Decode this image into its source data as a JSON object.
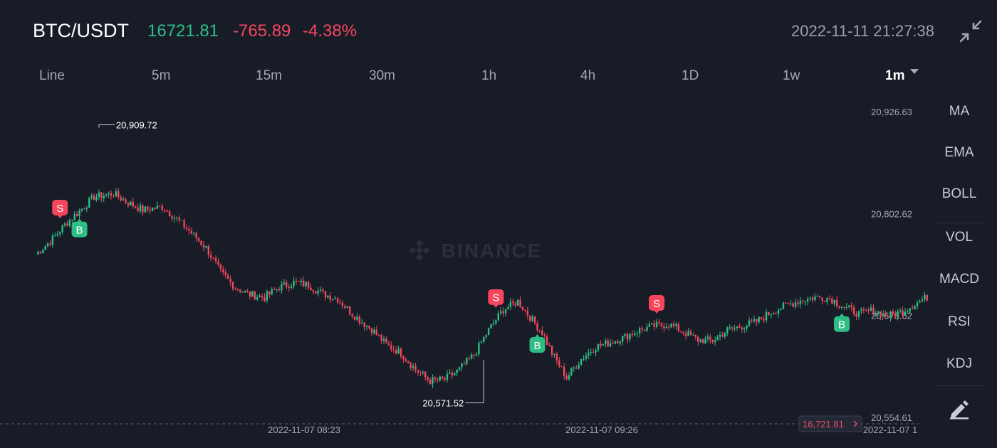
{
  "header": {
    "pair": "BTC/USDT",
    "last_price": "16721.81",
    "change": "-765.89",
    "change_pct": "-4.38%",
    "datetime": "2022-11-11 21:27:38"
  },
  "intervals": [
    {
      "label": "Line",
      "active": false
    },
    {
      "label": "5m",
      "active": false
    },
    {
      "label": "15m",
      "active": false
    },
    {
      "label": "30m",
      "active": false
    },
    {
      "label": "1h",
      "active": false
    },
    {
      "label": "4h",
      "active": false
    },
    {
      "label": "1D",
      "active": false
    },
    {
      "label": "1w",
      "active": false
    },
    {
      "label": "1m",
      "active": true
    }
  ],
  "indicators": [
    "MA",
    "EMA",
    "BOLL",
    "VOL",
    "MACD",
    "RSI",
    "KDJ"
  ],
  "watermark": "BINANCE",
  "icons": {
    "collapse": "collapse-icon",
    "dropdown": "caret-down-icon",
    "draw": "pencil-icon",
    "logo": "binance-logo-icon"
  },
  "colors": {
    "up": "#2ebd85",
    "down": "#f6465d",
    "background": "#181c27"
  },
  "chart_data": {
    "type": "candlestick",
    "y_ticks": [
      "20,926.63",
      "20,802.62",
      "20,678.62",
      "20,554.61"
    ],
    "y_tick_values": [
      20926.63,
      20802.62,
      20678.62,
      20554.61
    ],
    "x_ticks": [
      "2022-11-07 08:23",
      "2022-11-07 09:26",
      "2022-11-07 1"
    ],
    "high_label": "20,909.72",
    "low_label": "20,571.52",
    "last_price_tag": "16,721.81",
    "close_path": [
      [
        0,
        20752
      ],
      [
        6,
        20768
      ],
      [
        12,
        20788
      ],
      [
        18,
        20805
      ],
      [
        24,
        20822
      ],
      [
        32,
        20826
      ],
      [
        38,
        20815
      ],
      [
        44,
        20806
      ],
      [
        52,
        20810
      ],
      [
        58,
        20795
      ],
      [
        64,
        20778
      ],
      [
        70,
        20760
      ],
      [
        76,
        20730
      ],
      [
        82,
        20712
      ],
      [
        88,
        20703
      ],
      [
        94,
        20700
      ],
      [
        100,
        20712
      ],
      [
        106,
        20718
      ],
      [
        112,
        20715
      ],
      [
        118,
        20704
      ],
      [
        124,
        20698
      ],
      [
        130,
        20680
      ],
      [
        134,
        20670
      ],
      [
        138,
        20661
      ],
      [
        144,
        20642
      ],
      [
        150,
        20632
      ],
      [
        156,
        20612
      ],
      [
        162,
        20598
      ],
      [
        168,
        20600
      ],
      [
        174,
        20612
      ],
      [
        180,
        20630
      ],
      [
        186,
        20660
      ],
      [
        192,
        20685
      ],
      [
        198,
        20695
      ],
      [
        204,
        20672
      ],
      [
        208,
        20657
      ],
      [
        212,
        20632
      ],
      [
        218,
        20602
      ],
      [
        224,
        20625
      ],
      [
        230,
        20640
      ],
      [
        236,
        20645
      ],
      [
        242,
        20652
      ],
      [
        248,
        20660
      ],
      [
        254,
        20665
      ],
      [
        260,
        20667
      ],
      [
        266,
        20658
      ],
      [
        272,
        20648
      ],
      [
        278,
        20647
      ],
      [
        284,
        20660
      ],
      [
        290,
        20665
      ],
      [
        296,
        20670
      ],
      [
        302,
        20682
      ],
      [
        308,
        20690
      ],
      [
        314,
        20696
      ],
      [
        320,
        20700
      ],
      [
        326,
        20699
      ],
      [
        332,
        20688
      ],
      [
        338,
        20680
      ],
      [
        344,
        20684
      ],
      [
        350,
        20677
      ],
      [
        356,
        20683
      ],
      [
        360,
        20690
      ],
      [
        366,
        20700
      ]
    ],
    "trade_markers": [
      {
        "type": "S",
        "index": 10
      },
      {
        "type": "B",
        "index": 18
      },
      {
        "type": "S",
        "index": 189
      },
      {
        "type": "B",
        "index": 206
      },
      {
        "type": "S",
        "index": 255
      },
      {
        "type": "B",
        "index": 331
      }
    ],
    "grid": true
  }
}
